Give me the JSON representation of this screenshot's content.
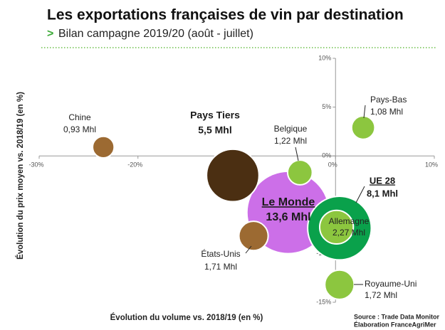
{
  "chart_data": {
    "type": "bubble",
    "title": "Les exportations françaises de vin par destination",
    "subtitle_marker": ">",
    "subtitle": "Bilan campagne 2019/20 (août - juillet)",
    "x_label": "Évolution du volume vs. 2018/19 (en %)",
    "y_label": "Évolution du prix moyen vs. 2018/19 (en %)",
    "source": [
      "Source : Trade Data Monitor",
      "Élaboration FranceAgriMer"
    ],
    "xlim": [
      -30,
      10
    ],
    "ylim": [
      -15,
      10
    ],
    "xticks": [
      {
        "value": -30,
        "label": "-30%"
      },
      {
        "value": -20,
        "label": "-20%"
      },
      {
        "value": -10,
        "label": "-10%"
      },
      {
        "value": 0,
        "label": "0%"
      },
      {
        "value": 10,
        "label": "10%"
      }
    ],
    "yticks": [
      {
        "value": -15,
        "label": "-15%"
      },
      {
        "value": -10,
        "label": "-10%"
      },
      {
        "value": -5,
        "label": "-5%"
      },
      {
        "value": 0,
        "label": "0%"
      },
      {
        "value": 5,
        "label": "5%"
      },
      {
        "value": 10,
        "label": "10%"
      }
    ],
    "points": [
      {
        "name": "Le Monde",
        "size_label": "13,6 Mhl",
        "x": -4.8,
        "y": -5.8,
        "size": 13.6,
        "color": "#cc6fe8"
      },
      {
        "name": "Pays Tiers",
        "size_label": "5,5 Mhl",
        "x": -10.4,
        "y": -2.0,
        "size": 5.5,
        "color": "#4b2f12"
      },
      {
        "name": "UE 28",
        "size_label": "8,1 Mhl",
        "x": 0.4,
        "y": -7.4,
        "size": 8.1,
        "color": "#0aa14b"
      },
      {
        "name": "Allemagne",
        "size_label": "2,27 Mhl",
        "x": 0.1,
        "y": -7.3,
        "size": 2.27,
        "color": "#8cc63f"
      },
      {
        "name": "Chine",
        "size_label": "0,93 Mhl",
        "x": -23.5,
        "y": 0.9,
        "size": 0.93,
        "color": "#9c6a32"
      },
      {
        "name": "Belgique",
        "size_label": "1,22 Mhl",
        "x": -3.6,
        "y": -1.7,
        "size": 1.22,
        "color": "#8cc63f"
      },
      {
        "name": "Pays-Bas",
        "size_label": "1,08 Mhl",
        "x": 2.8,
        "y": 2.9,
        "size": 1.08,
        "color": "#8cc63f"
      },
      {
        "name": "États-Unis",
        "size_label": "1,71 Mhl",
        "x": -8.3,
        "y": -8.2,
        "size": 1.71,
        "color": "#9c6a32"
      },
      {
        "name": "Royaume-Uni",
        "size_label": "1,72 Mhl",
        "x": 0.4,
        "y": -13.2,
        "size": 1.72,
        "color": "#8cc63f"
      }
    ]
  }
}
